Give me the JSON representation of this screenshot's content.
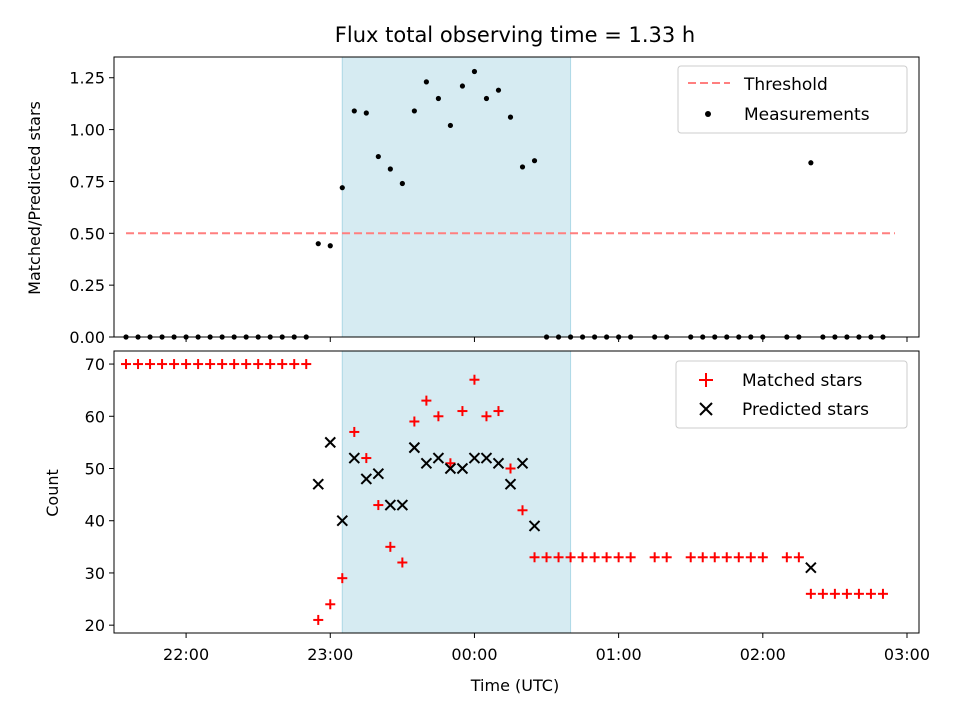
{
  "figure": {
    "title": "Flux total observing time = 1.33 h",
    "colors": {
      "threshold": "#ff7f7f",
      "matched": "#ff0000",
      "predicted": "#000000",
      "measurement": "#000000",
      "span": "#add8e6"
    }
  },
  "chart_data": [
    {
      "type": "scatter",
      "panel": "top",
      "ylabel": "Matched/Predicted stars",
      "ylim": [
        0,
        1.35
      ],
      "xlim": [
        "21:30",
        "03:05"
      ],
      "yticks": [
        0,
        0.25,
        0.5,
        0.75,
        1.0,
        1.25
      ],
      "ytick_labels": [
        "0.00",
        "0.25",
        "0.50",
        "0.75",
        "1.00",
        "1.25"
      ],
      "legend": {
        "placement": "top-right",
        "entries": [
          "Threshold",
          "Measurements"
        ]
      },
      "shaded_span": [
        "23:05",
        "00:40"
      ],
      "threshold": {
        "name": "Threshold",
        "y": 0.5,
        "x": [
          "21:35",
          "02:55"
        ]
      },
      "series": [
        {
          "name": "Measurements",
          "points": [
            [
              "21:35",
              0
            ],
            [
              "21:40",
              0
            ],
            [
              "21:45",
              0
            ],
            [
              "21:50",
              0
            ],
            [
              "21:55",
              0
            ],
            [
              "22:00",
              0
            ],
            [
              "22:05",
              0
            ],
            [
              "22:10",
              0
            ],
            [
              "22:15",
              0
            ],
            [
              "22:20",
              0
            ],
            [
              "22:25",
              0
            ],
            [
              "22:30",
              0
            ],
            [
              "22:35",
              0
            ],
            [
              "22:40",
              0
            ],
            [
              "22:45",
              0
            ],
            [
              "22:50",
              0
            ],
            [
              "22:55",
              0.45
            ],
            [
              "23:00",
              0.44
            ],
            [
              "23:05",
              0.72
            ],
            [
              "23:10",
              1.09
            ],
            [
              "23:15",
              1.08
            ],
            [
              "23:20",
              0.87
            ],
            [
              "23:25",
              0.81
            ],
            [
              "23:30",
              0.74
            ],
            [
              "23:35",
              1.09
            ],
            [
              "23:40",
              1.23
            ],
            [
              "23:45",
              1.15
            ],
            [
              "23:50",
              1.02
            ],
            [
              "23:55",
              1.21
            ],
            [
              "00:00",
              1.28
            ],
            [
              "00:05",
              1.15
            ],
            [
              "00:10",
              1.19
            ],
            [
              "00:15",
              1.06
            ],
            [
              "00:20",
              0.82
            ],
            [
              "00:25",
              0.85
            ],
            [
              "00:30",
              0
            ],
            [
              "00:35",
              0
            ],
            [
              "00:40",
              0
            ],
            [
              "00:45",
              0
            ],
            [
              "00:50",
              0
            ],
            [
              "00:55",
              0
            ],
            [
              "01:00",
              0
            ],
            [
              "01:05",
              0
            ],
            [
              "01:15",
              0
            ],
            [
              "01:20",
              0
            ],
            [
              "01:30",
              0
            ],
            [
              "01:35",
              0
            ],
            [
              "01:40",
              0
            ],
            [
              "01:45",
              0
            ],
            [
              "01:50",
              0
            ],
            [
              "01:55",
              0
            ],
            [
              "02:00",
              0
            ],
            [
              "02:10",
              0
            ],
            [
              "02:15",
              0
            ],
            [
              "02:20",
              0.84
            ],
            [
              "02:25",
              0
            ],
            [
              "02:30",
              0
            ],
            [
              "02:35",
              0
            ],
            [
              "02:40",
              0
            ],
            [
              "02:45",
              0
            ],
            [
              "02:50",
              0
            ]
          ]
        }
      ]
    },
    {
      "type": "scatter",
      "panel": "bottom",
      "xlabel": "Time (UTC)",
      "ylabel": "Count",
      "ylim": [
        18.5,
        72.5
      ],
      "xlim": [
        "21:30",
        "03:05"
      ],
      "yticks": [
        20,
        30,
        40,
        50,
        60,
        70
      ],
      "xticks": [
        "22:00",
        "23:00",
        "00:00",
        "01:00",
        "02:00",
        "03:00"
      ],
      "legend": {
        "placement": "top-right",
        "entries": [
          "Matched stars",
          "Predicted stars"
        ]
      },
      "shaded_span": [
        "23:05",
        "00:40"
      ],
      "series": [
        {
          "name": "Matched stars",
          "marker": "+",
          "points": [
            [
              "21:35",
              70
            ],
            [
              "21:40",
              70
            ],
            [
              "21:45",
              70
            ],
            [
              "21:50",
              70
            ],
            [
              "21:55",
              70
            ],
            [
              "22:00",
              70
            ],
            [
              "22:05",
              70
            ],
            [
              "22:10",
              70
            ],
            [
              "22:15",
              70
            ],
            [
              "22:20",
              70
            ],
            [
              "22:25",
              70
            ],
            [
              "22:30",
              70
            ],
            [
              "22:35",
              70
            ],
            [
              "22:40",
              70
            ],
            [
              "22:45",
              70
            ],
            [
              "22:50",
              70
            ],
            [
              "22:55",
              21
            ],
            [
              "23:00",
              24
            ],
            [
              "23:05",
              29
            ],
            [
              "23:10",
              57
            ],
            [
              "23:15",
              52
            ],
            [
              "23:20",
              43
            ],
            [
              "23:25",
              35
            ],
            [
              "23:30",
              32
            ],
            [
              "23:35",
              59
            ],
            [
              "23:40",
              63
            ],
            [
              "23:45",
              60
            ],
            [
              "23:50",
              51
            ],
            [
              "23:55",
              61
            ],
            [
              "00:00",
              67
            ],
            [
              "00:05",
              60
            ],
            [
              "00:10",
              61
            ],
            [
              "00:15",
              50
            ],
            [
              "00:20",
              42
            ],
            [
              "00:25",
              33
            ],
            [
              "00:30",
              33
            ],
            [
              "00:35",
              33
            ],
            [
              "00:40",
              33
            ],
            [
              "00:45",
              33
            ],
            [
              "00:50",
              33
            ],
            [
              "00:55",
              33
            ],
            [
              "01:00",
              33
            ],
            [
              "01:05",
              33
            ],
            [
              "01:15",
              33
            ],
            [
              "01:20",
              33
            ],
            [
              "01:30",
              33
            ],
            [
              "01:35",
              33
            ],
            [
              "01:40",
              33
            ],
            [
              "01:45",
              33
            ],
            [
              "01:50",
              33
            ],
            [
              "01:55",
              33
            ],
            [
              "02:00",
              33
            ],
            [
              "02:10",
              33
            ],
            [
              "02:15",
              33
            ],
            [
              "02:20",
              26
            ],
            [
              "02:25",
              26
            ],
            [
              "02:30",
              26
            ],
            [
              "02:35",
              26
            ],
            [
              "02:40",
              26
            ],
            [
              "02:45",
              26
            ],
            [
              "02:50",
              26
            ]
          ]
        },
        {
          "name": "Predicted stars",
          "marker": "x",
          "points": [
            [
              "22:55",
              47
            ],
            [
              "23:00",
              55
            ],
            [
              "23:05",
              40
            ],
            [
              "23:10",
              52
            ],
            [
              "23:15",
              48
            ],
            [
              "23:20",
              49
            ],
            [
              "23:25",
              43
            ],
            [
              "23:30",
              43
            ],
            [
              "23:35",
              54
            ],
            [
              "23:40",
              51
            ],
            [
              "23:45",
              52
            ],
            [
              "23:50",
              50
            ],
            [
              "23:55",
              50
            ],
            [
              "00:00",
              52
            ],
            [
              "00:05",
              52
            ],
            [
              "00:10",
              51
            ],
            [
              "00:15",
              47
            ],
            [
              "00:20",
              51
            ],
            [
              "00:25",
              39
            ],
            [
              "02:20",
              31
            ]
          ]
        }
      ]
    }
  ]
}
